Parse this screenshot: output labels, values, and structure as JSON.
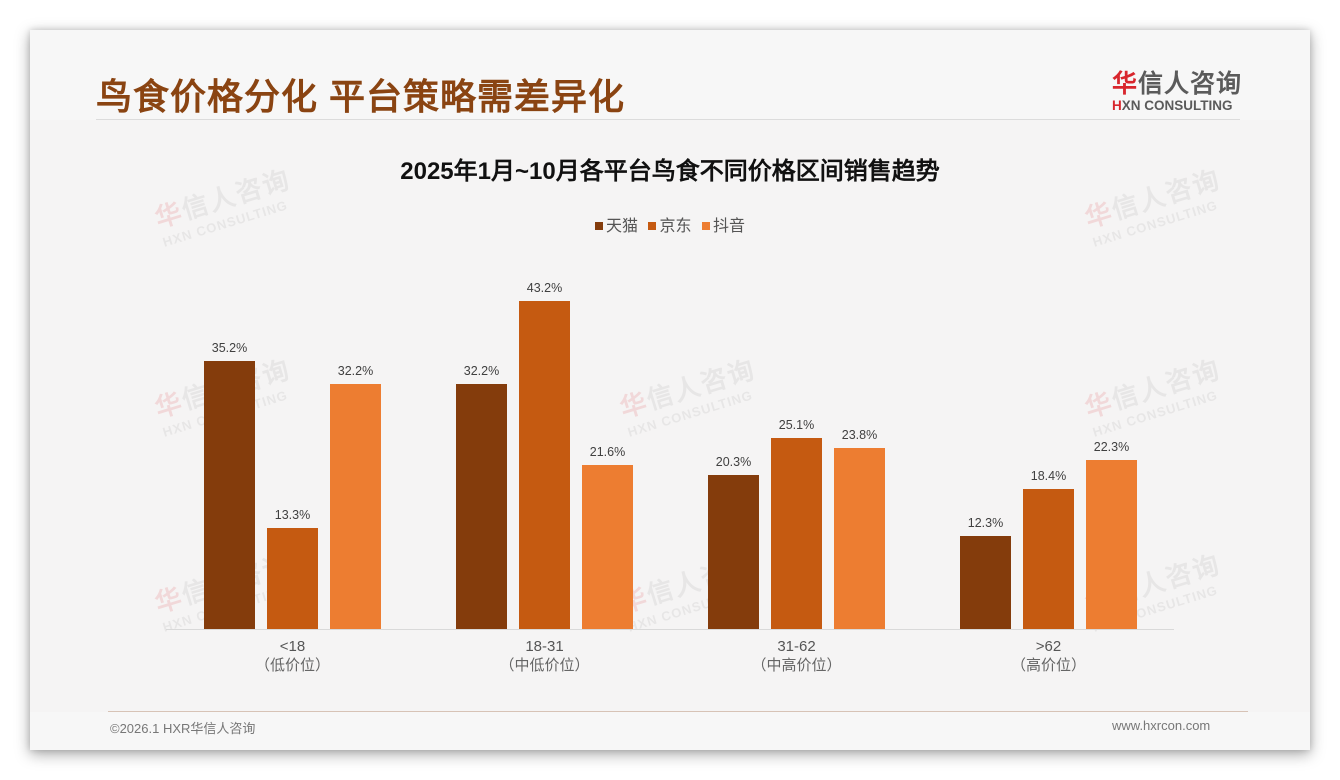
{
  "page": {
    "title": "鸟食价格分化 平台策略需差异化"
  },
  "logo": {
    "cn_red": "华",
    "cn_rest": "信人咨询",
    "en_red": "H",
    "en_rest": "XN CONSULTING"
  },
  "watermark": {
    "cn_red": "华",
    "cn_rest": "信人咨询",
    "en": "HXN CONSULTING"
  },
  "footer": {
    "copyright": "©2026.1 HXR华信人咨询",
    "website": "www.hxrcon.com"
  },
  "colors": {
    "title": "#8a4412",
    "tmall": "#843c0c",
    "jd": "#c55a11",
    "douyin": "#ed7d31"
  },
  "chart": {
    "title": "2025年1月~10月各平台鸟食不同价格区间销售趋势",
    "legend": [
      {
        "label": "天猫",
        "color": "#843c0c"
      },
      {
        "label": "京东",
        "color": "#c55a11"
      },
      {
        "label": "抖音",
        "color": "#ed7d31"
      }
    ],
    "categories": [
      {
        "range": "<18",
        "sub": "（低价位）"
      },
      {
        "range": "18-31",
        "sub": "（中低价位）"
      },
      {
        "range": "31-62",
        "sub": "（中高价位）"
      },
      {
        "range": ">62",
        "sub": "（高价位）"
      }
    ],
    "bar_labels": [
      [
        "35.2%",
        "13.3%",
        "32.2%"
      ],
      [
        "32.2%",
        "43.2%",
        "21.6%"
      ],
      [
        "20.3%",
        "25.1%",
        "23.8%"
      ],
      [
        "12.3%",
        "18.4%",
        "22.3%"
      ]
    ]
  },
  "chart_data": {
    "type": "bar",
    "title": "2025年1月~10月各平台鸟食不同价格区间销售趋势",
    "categories": [
      "<18（低价位）",
      "18-31（中低价位）",
      "31-62（中高价位）",
      ">62（高价位）"
    ],
    "series": [
      {
        "name": "天猫",
        "color": "#843c0c",
        "values": [
          35.2,
          32.2,
          20.3,
          12.3
        ]
      },
      {
        "name": "京东",
        "color": "#c55a11",
        "values": [
          13.3,
          43.2,
          25.1,
          18.4
        ]
      },
      {
        "name": "抖音",
        "color": "#ed7d31",
        "values": [
          32.2,
          21.6,
          23.8,
          22.3
        ]
      }
    ],
    "unit": "%",
    "xlabel": "",
    "ylabel": "",
    "ylim": [
      0,
      45
    ],
    "grid": false,
    "legend_position": "top",
    "data_labels": true
  }
}
